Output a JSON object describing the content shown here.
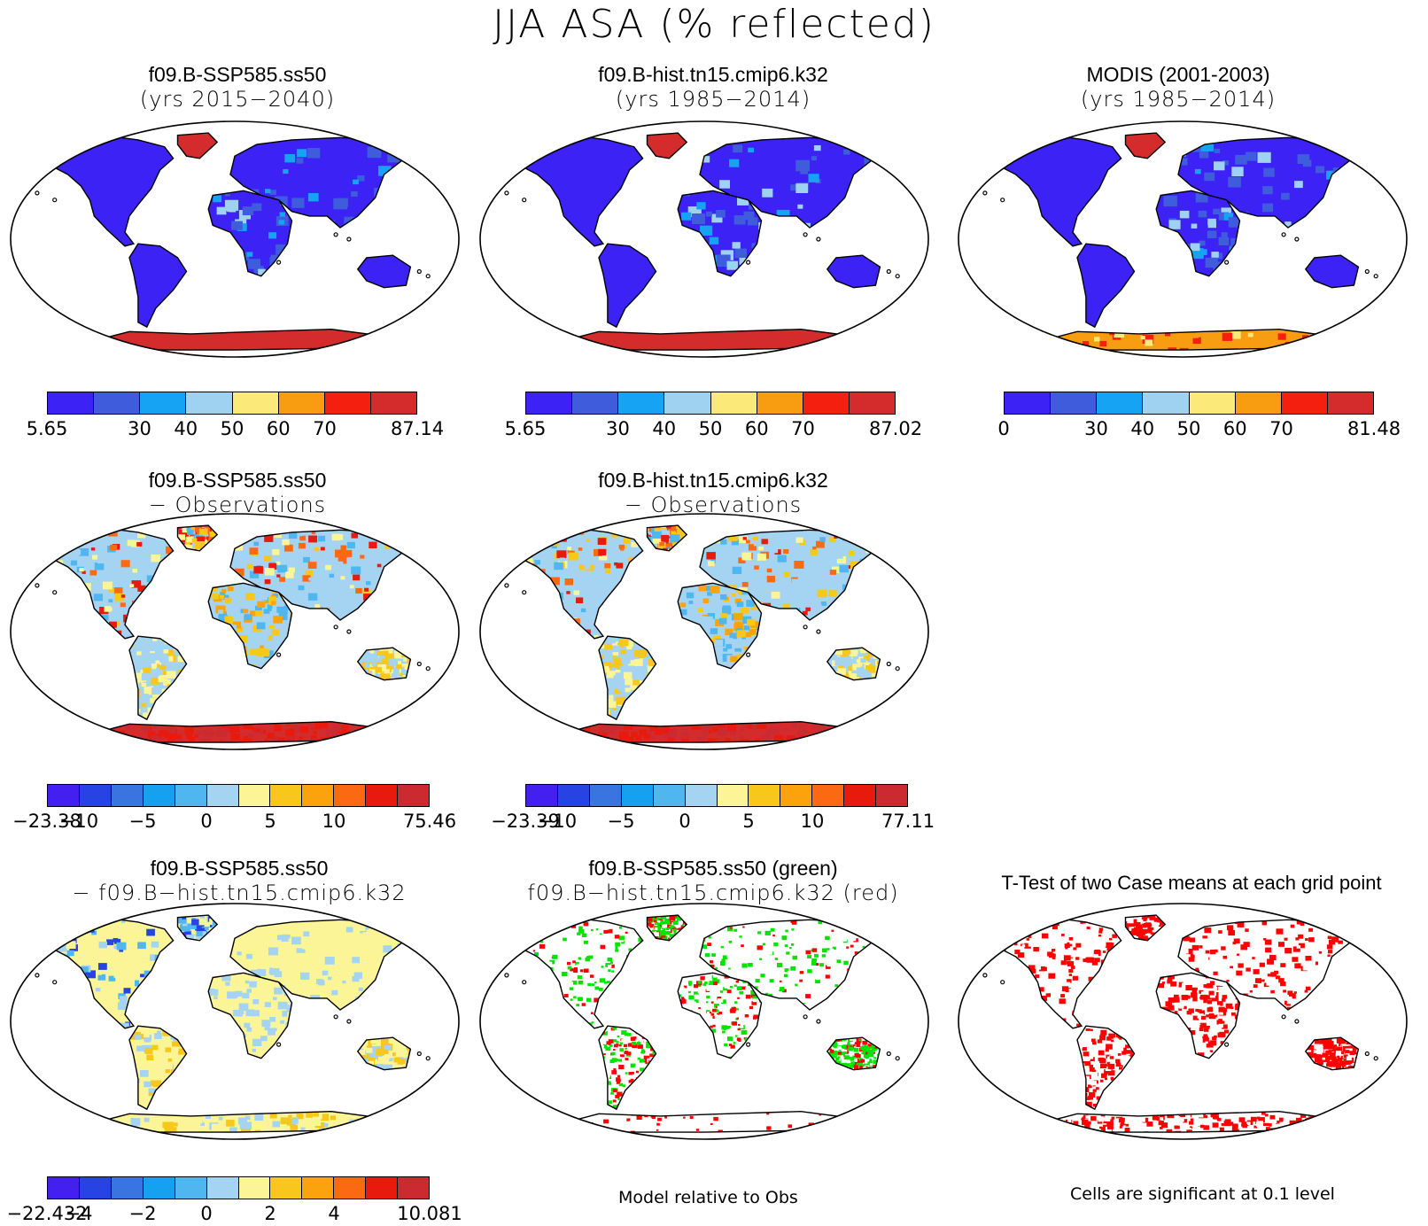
{
  "main_title": "JJA ASA (% reflected)",
  "colors": {
    "levels_pos": [
      "#3c22f5",
      "#3e5cdc",
      "#17a3f4",
      "#9fd1f0",
      "#fbea7a",
      "#f89c11",
      "#f51f10",
      "#d42c2c"
    ],
    "levels_diff": [
      "#4320ef",
      "#2743e4",
      "#3a74e0",
      "#15a0f0",
      "#4fb6ef",
      "#a4d4f1",
      "#fbf597",
      "#f8c71c",
      "#fca20c",
      "#fb6a13",
      "#e81a0e",
      "#cb2b30"
    ],
    "land_low": "#3c22f5",
    "significant_green": "#00e400",
    "significant_red": "#ff0000",
    "ocean": "#ffffff",
    "coast": "#000000"
  },
  "panels": [
    {
      "id": "p1",
      "title_line1": "f09.B-SSP585.ss50",
      "title_line2": "(yrs 2015−2040)",
      "colorbar": {
        "min": "5.65",
        "ticks": [
          "30",
          "40",
          "50",
          "60",
          "70"
        ],
        "max": "87.14"
      },
      "map_fill": "asa",
      "antarctica": "#d42c2c"
    },
    {
      "id": "p2",
      "title_line1": "f09.B-hist.tn15.cmip6.k32",
      "title_line2": "(yrs 1985−2014)",
      "colorbar": {
        "min": "5.65",
        "ticks": [
          "30",
          "40",
          "50",
          "60",
          "70"
        ],
        "max": "87.02"
      },
      "map_fill": "asa",
      "antarctica": "#d42c2c"
    },
    {
      "id": "p3",
      "title_line1": "MODIS (2001-2003)",
      "title_line2": "(yrs 1985−2014)",
      "colorbar": {
        "min": "0",
        "ticks": [
          "30",
          "40",
          "50",
          "60",
          "70"
        ],
        "max": "81.48"
      },
      "map_fill": "asa",
      "antarctica": "#f89c11"
    },
    {
      "id": "p4",
      "title_line1": "f09.B-SSP585.ss50",
      "title_line2": "− Observations",
      "colorbar": {
        "min": "−23.38",
        "ticks": [
          "−10",
          "−5",
          "0",
          "5",
          "10"
        ],
        "max": "75.46"
      },
      "map_fill": "bias",
      "antarctica": "#d42c2c"
    },
    {
      "id": "p5",
      "title_line1": "f09.B-hist.tn15.cmip6.k32",
      "title_line2": "− Observations",
      "colorbar": {
        "min": "−23.39",
        "ticks": [
          "−10",
          "−5",
          "0",
          "5",
          "10"
        ],
        "max": "77.11"
      },
      "map_fill": "bias",
      "antarctica": "#d42c2c"
    },
    {
      "id": "p6",
      "title_line1": "f09.B-SSP585.ss50",
      "title_line2": "− f09.B−hist.tn15.cmip6.k32",
      "colorbar": {
        "min": "−22.432",
        "ticks": [
          "−4",
          "−2",
          "0",
          "2",
          "4"
        ],
        "max": "10.081"
      },
      "map_fill": "diff",
      "antarctica": "#fbf597"
    },
    {
      "id": "p7",
      "title_line1": "f09.B-SSP585.ss50 (green)",
      "title_line2": "f09.B−hist.tn15.cmip6.k32 (red)",
      "note": "Model relative to Obs",
      "map_fill": "sig2"
    },
    {
      "id": "p8",
      "title_line1": "T-Test of two Case means at each grid point",
      "note": "Cells are significant at 0.1 level",
      "map_fill": "sig1"
    }
  ]
}
